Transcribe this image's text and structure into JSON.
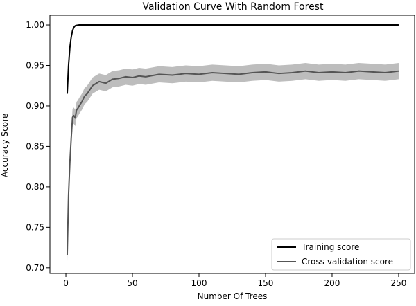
{
  "chart_data": {
    "type": "line",
    "title": "Validation Curve With Random Forest",
    "xlabel": "Number Of Trees",
    "ylabel": "Accuracy Score",
    "xlim": [
      -12,
      262
    ],
    "ylim": [
      0.693,
      1.012
    ],
    "xticks": [
      0,
      50,
      100,
      150,
      200,
      250
    ],
    "yticks": [
      0.7,
      0.75,
      0.8,
      0.85,
      0.9,
      0.95,
      1.0
    ],
    "xtick_labels": [
      "0",
      "50",
      "100",
      "150",
      "200",
      "250"
    ],
    "ytick_labels": [
      "0.70",
      "0.75",
      "0.80",
      "0.85",
      "0.90",
      "0.95",
      "1.00"
    ],
    "legend_position": "lower right",
    "grid": false,
    "series": [
      {
        "name": "Training score",
        "color": "#000000",
        "x": [
          1,
          2,
          3,
          4,
          5,
          6,
          7,
          8,
          10,
          12,
          15,
          20,
          30,
          250
        ],
        "values": [
          0.915,
          0.95,
          0.972,
          0.985,
          0.993,
          0.997,
          0.999,
          0.9995,
          1.0,
          1.0,
          1.0,
          1.0,
          1.0,
          1.0
        ]
      },
      {
        "name": "Cross-validation score",
        "color": "#555555",
        "band_color": "#bdbdbd",
        "band_halfwidth": 0.01,
        "x": [
          1,
          2,
          3,
          4,
          5,
          6,
          7,
          8,
          9,
          10,
          12,
          14,
          16,
          18,
          20,
          25,
          30,
          35,
          40,
          45,
          50,
          55,
          60,
          70,
          80,
          90,
          100,
          110,
          120,
          130,
          140,
          150,
          160,
          170,
          180,
          190,
          200,
          210,
          220,
          230,
          240,
          250
        ],
        "values": [
          0.716,
          0.79,
          0.83,
          0.86,
          0.886,
          0.888,
          0.885,
          0.895,
          0.897,
          0.9,
          0.905,
          0.912,
          0.915,
          0.92,
          0.925,
          0.93,
          0.928,
          0.933,
          0.934,
          0.936,
          0.935,
          0.937,
          0.936,
          0.939,
          0.938,
          0.94,
          0.939,
          0.941,
          0.94,
          0.939,
          0.941,
          0.942,
          0.94,
          0.941,
          0.943,
          0.941,
          0.942,
          0.941,
          0.943,
          0.942,
          0.941,
          0.943
        ]
      }
    ]
  }
}
